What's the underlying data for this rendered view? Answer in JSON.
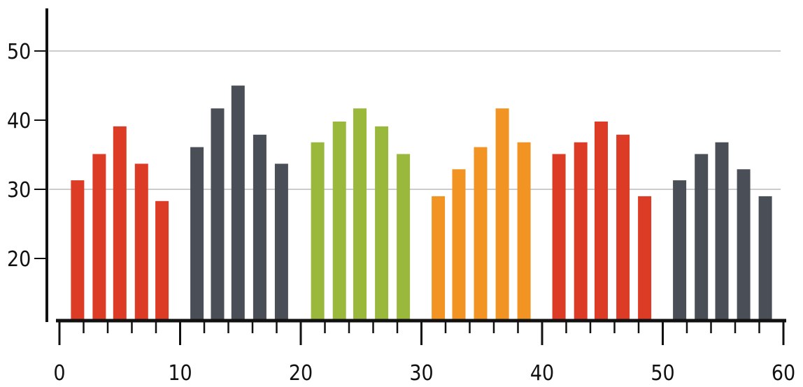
{
  "chart_data": {
    "type": "bar",
    "title": "",
    "xlabel": "",
    "ylabel": "",
    "xlim": [
      0,
      60
    ],
    "ylim": [
      11,
      56
    ],
    "x_ticks": [
      0,
      10,
      20,
      30,
      40,
      50,
      60
    ],
    "x_tick_labels": [
      "0",
      "10",
      "20",
      "30",
      "40",
      "50",
      "60"
    ],
    "y_ticks": [
      20,
      30,
      40,
      50
    ],
    "y_tick_labels": [
      "20",
      "30",
      "40",
      "50"
    ],
    "gridlines_y": [
      30,
      50
    ],
    "grid": true,
    "legend": "none",
    "colors": {
      "red": "#dc3b26",
      "slate": "#4a4e57",
      "green": "#9ab83c",
      "orange": "#f29423",
      "axis": "#111111",
      "grid": "#9a9a9a"
    },
    "groups": [
      {
        "color": "red",
        "x": [
          1.5,
          3.3,
          5.0,
          6.8,
          8.5
        ],
        "values": [
          31.3,
          35.1,
          39.1,
          33.7,
          28.3
        ]
      },
      {
        "color": "slate",
        "x": [
          11.4,
          13.1,
          14.8,
          16.6,
          18.4
        ],
        "values": [
          36.1,
          41.7,
          45.0,
          37.9,
          33.7
        ]
      },
      {
        "color": "green",
        "x": [
          21.4,
          23.2,
          24.9,
          26.7,
          28.5
        ],
        "values": [
          36.8,
          39.8,
          41.7,
          39.1,
          35.1
        ]
      },
      {
        "color": "orange",
        "x": [
          31.4,
          33.1,
          34.9,
          36.7,
          38.5
        ],
        "values": [
          29.0,
          32.9,
          36.1,
          41.7,
          36.8
        ]
      },
      {
        "color": "red",
        "x": [
          41.4,
          43.2,
          44.9,
          46.7,
          48.5
        ],
        "values": [
          35.1,
          36.8,
          39.8,
          37.9,
          29.0
        ]
      },
      {
        "color": "slate",
        "x": [
          51.4,
          53.2,
          54.9,
          56.7,
          58.5
        ],
        "values": [
          31.3,
          35.1,
          36.8,
          32.9,
          29.0
        ]
      }
    ]
  }
}
